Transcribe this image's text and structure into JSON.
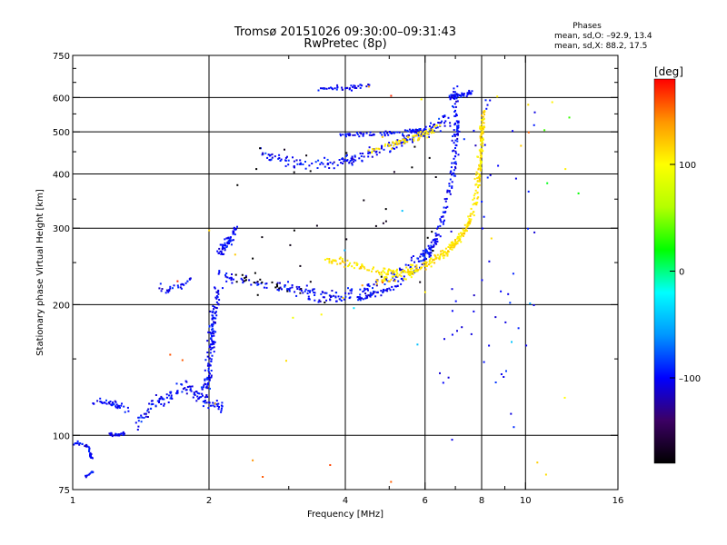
{
  "chart_data": {
    "type": "scatter",
    "title": "Tromsø 20151026 09:30:00–09:31:43",
    "subtitle": "RwPretec (8p)",
    "stats": {
      "heading": "Phases",
      "line_o": "mean, sd,O: –92.9, 13.4",
      "line_x": "mean, sd,X:  88.2, 17.5"
    },
    "xlabel": "Frequency [MHz]",
    "ylabel": "Stationary phase Virtual Height [km]",
    "xscale": "log",
    "yscale": "log",
    "xlim": [
      1,
      16
    ],
    "ylim": [
      75,
      750
    ],
    "xticks": [
      1,
      2,
      4,
      6,
      8,
      10,
      16
    ],
    "xtick_labels": [
      "1",
      "2",
      "4",
      "6",
      "8",
      "10",
      "16"
    ],
    "xminor": [
      3,
      5,
      7,
      9
    ],
    "yticks": [
      75,
      100,
      200,
      300,
      400,
      500,
      600,
      750
    ],
    "ytick_labels": [
      "75",
      "100",
      "200",
      "300",
      "400",
      "500",
      "600",
      "750"
    ],
    "yminor": [
      150,
      250,
      350,
      450,
      550,
      650,
      700
    ],
    "grid_x": [
      2,
      4,
      6,
      8,
      10
    ],
    "grid_y": [
      100,
      200,
      300,
      400,
      500,
      600
    ],
    "colorbar": {
      "label": "[deg]",
      "min": -180,
      "max": 180,
      "ticks": [
        100,
        0,
        -100
      ],
      "tick_labels": [
        "100",
        "0",
        "–100"
      ],
      "colors": [
        "#000000",
        "#3c0064",
        "#0000ff",
        "#0096ff",
        "#00ffff",
        "#00ff00",
        "#b4ff00",
        "#ffff00",
        "#ff9600",
        "#ff0000"
      ]
    },
    "series": [
      {
        "phase": -100,
        "kind": "curve",
        "n": 40,
        "spread": 0.02,
        "points": [
          [
            1.0,
            96
          ],
          [
            1.07,
            95
          ],
          [
            1.09,
            92
          ],
          [
            1.1,
            88
          ]
        ]
      },
      {
        "phase": -100,
        "kind": "curve",
        "n": 10,
        "spread": 0.01,
        "points": [
          [
            1.06,
            80
          ],
          [
            1.12,
            83
          ]
        ]
      },
      {
        "phase": -100,
        "kind": "curve",
        "n": 40,
        "spread": 0.025,
        "points": [
          [
            1.1,
            118
          ],
          [
            1.18,
            120
          ],
          [
            1.26,
            117
          ],
          [
            1.33,
            114
          ]
        ]
      },
      {
        "phase": -100,
        "kind": "curve",
        "n": 25,
        "spread": 0.015,
        "points": [
          [
            1.2,
            101
          ],
          [
            1.25,
            100
          ],
          [
            1.3,
            101
          ]
        ]
      },
      {
        "phase": -100,
        "kind": "curve",
        "n": 120,
        "spread": 0.05,
        "points": [
          [
            1.38,
            105
          ],
          [
            1.5,
            118
          ],
          [
            1.63,
            123
          ],
          [
            1.78,
            130
          ],
          [
            1.9,
            122
          ],
          [
            2.02,
            118
          ],
          [
            2.15,
            116
          ]
        ]
      },
      {
        "phase": -100,
        "kind": "curve",
        "n": 140,
        "spread": 0.07,
        "points": [
          [
            1.95,
            125
          ],
          [
            2.0,
            140
          ],
          [
            2.03,
            165
          ],
          [
            2.05,
            190
          ],
          [
            2.1,
            215
          ]
        ]
      },
      {
        "phase": -100,
        "kind": "curve",
        "n": 30,
        "spread": 0.025,
        "points": [
          [
            1.55,
            220
          ],
          [
            1.62,
            215
          ],
          [
            1.75,
            222
          ],
          [
            1.82,
            232
          ]
        ]
      },
      {
        "phase": -100,
        "kind": "curve",
        "n": 240,
        "spread": 0.04,
        "points": [
          [
            2.1,
            235
          ],
          [
            2.3,
            228
          ],
          [
            2.6,
            224
          ],
          [
            2.9,
            222
          ],
          [
            3.2,
            215
          ],
          [
            3.5,
            212
          ],
          [
            3.9,
            212
          ],
          [
            4.4,
            218
          ],
          [
            4.8,
            226
          ],
          [
            5.3,
            238
          ],
          [
            5.8,
            255
          ],
          [
            6.2,
            275
          ],
          [
            6.6,
            320
          ],
          [
            6.85,
            400
          ],
          [
            6.95,
            480
          ],
          [
            7.0,
            560
          ],
          [
            7.0,
            630
          ]
        ]
      },
      {
        "phase": -100,
        "kind": "curve",
        "n": 180,
        "spread": 0.03,
        "points": [
          [
            3.3,
            206
          ],
          [
            3.8,
            205
          ],
          [
            4.4,
            208
          ],
          [
            4.9,
            215
          ],
          [
            5.4,
            228
          ],
          [
            5.9,
            248
          ],
          [
            6.3,
            275
          ],
          [
            6.7,
            330
          ],
          [
            6.95,
            400
          ],
          [
            7.05,
            470
          ],
          [
            7.1,
            530
          ]
        ]
      },
      {
        "phase": -100,
        "kind": "curve",
        "n": 60,
        "spread": 0.05,
        "points": [
          [
            2.1,
            262
          ],
          [
            2.2,
            278
          ],
          [
            2.3,
            300
          ]
        ]
      },
      {
        "phase": -100,
        "kind": "curve",
        "n": 200,
        "spread": 0.045,
        "points": [
          [
            2.6,
            445
          ],
          [
            2.9,
            430
          ],
          [
            3.3,
            420
          ],
          [
            3.7,
            422
          ],
          [
            4.1,
            432
          ],
          [
            4.6,
            448
          ],
          [
            5.2,
            470
          ],
          [
            5.8,
            490
          ],
          [
            6.3,
            510
          ],
          [
            6.8,
            540
          ]
        ]
      },
      {
        "phase": -100,
        "kind": "curve",
        "n": 80,
        "spread": 0.02,
        "points": [
          [
            3.9,
            492
          ],
          [
            4.4,
            495
          ],
          [
            5.0,
            497
          ],
          [
            5.5,
            500
          ],
          [
            6.0,
            505
          ]
        ]
      },
      {
        "phase": -100,
        "kind": "curve",
        "n": 40,
        "spread": 0.02,
        "points": [
          [
            3.4,
            622
          ],
          [
            3.7,
            628
          ],
          [
            4.0,
            630
          ],
          [
            4.3,
            635
          ],
          [
            4.6,
            645
          ]
        ]
      },
      {
        "phase": -100,
        "kind": "curve",
        "n": 40,
        "spread": 0.02,
        "points": [
          [
            6.8,
            600
          ],
          [
            7.0,
            605
          ],
          [
            7.3,
            610
          ],
          [
            7.6,
            615
          ]
        ]
      },
      {
        "phase": -100,
        "kind": "scatter",
        "n": 60,
        "xlim": [
          6.4,
          10.6
        ],
        "ylim": [
          90,
          620
        ]
      },
      {
        "phase": -180,
        "kind": "scatter",
        "n": 35,
        "xlim": [
          2.2,
          6.5
        ],
        "ylim": [
          200,
          470
        ]
      },
      {
        "phase": -180,
        "kind": "curve",
        "n": 20,
        "spread": 0.03,
        "points": [
          [
            2.3,
            230
          ],
          [
            2.7,
            224
          ],
          [
            3.2,
            215
          ]
        ]
      },
      {
        "phase": 110,
        "kind": "curve",
        "n": 220,
        "spread": 0.035,
        "points": [
          [
            3.6,
            255
          ],
          [
            4.0,
            248
          ],
          [
            4.4,
            244
          ],
          [
            4.9,
            238
          ],
          [
            5.3,
            236
          ],
          [
            5.8,
            245
          ],
          [
            6.2,
            252
          ],
          [
            6.6,
            265
          ],
          [
            7.0,
            280
          ],
          [
            7.4,
            300
          ],
          [
            7.7,
            340
          ],
          [
            7.85,
            400
          ],
          [
            7.95,
            470
          ],
          [
            8.0,
            540
          ]
        ]
      },
      {
        "phase": 110,
        "kind": "curve",
        "n": 200,
        "spread": 0.03,
        "points": [
          [
            4.7,
            228
          ],
          [
            5.2,
            230
          ],
          [
            5.7,
            238
          ],
          [
            6.2,
            250
          ],
          [
            6.7,
            265
          ],
          [
            7.1,
            282
          ],
          [
            7.5,
            305
          ],
          [
            7.8,
            345
          ],
          [
            7.95,
            410
          ],
          [
            8.05,
            500
          ],
          [
            8.1,
            560
          ]
        ]
      },
      {
        "phase": 110,
        "kind": "curve",
        "n": 70,
        "spread": 0.03,
        "points": [
          [
            4.5,
            455
          ],
          [
            5.0,
            465
          ],
          [
            5.5,
            480
          ],
          [
            6.0,
            495
          ],
          [
            6.5,
            520
          ]
        ]
      },
      {
        "phase": 110,
        "kind": "scatter",
        "n": 20,
        "xlim": [
          2.0,
          13.0
        ],
        "ylim": [
          80,
          680
        ]
      },
      {
        "phase": 150,
        "kind": "scatter",
        "n": 12,
        "xlim": [
          1.3,
          10.8
        ],
        "ylim": [
          78,
          660
        ]
      },
      {
        "phase": 30,
        "kind": "scatter",
        "n": 4,
        "xlim": [
          11.0,
          16.0
        ],
        "ylim": [
          300,
          560
        ]
      },
      {
        "phase": -40,
        "kind": "scatter",
        "n": 6,
        "xlim": [
          2.0,
          13.0
        ],
        "ylim": [
          140,
          330
        ]
      }
    ]
  }
}
